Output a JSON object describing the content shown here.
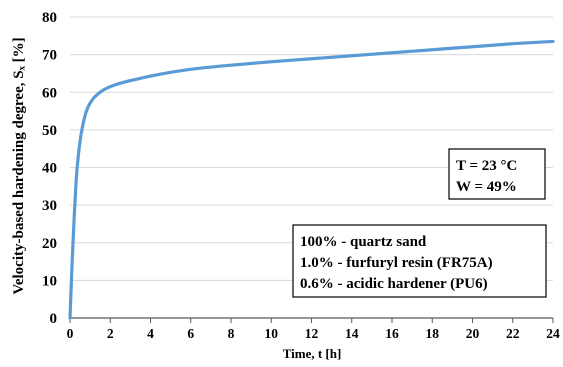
{
  "chart_data": {
    "type": "line",
    "xlabel": "Time, t [h]",
    "ylabel": "Velocity-based hardening degree, Sₓ [%]",
    "xlim": [
      0,
      24
    ],
    "ylim": [
      0,
      80
    ],
    "x_ticks": [
      "0",
      "2",
      "4",
      "6",
      "8",
      "10",
      "12",
      "14",
      "16",
      "18",
      "20",
      "22",
      "24"
    ],
    "y_ticks": [
      "0",
      "10",
      "20",
      "30",
      "40",
      "50",
      "60",
      "70",
      "80"
    ],
    "grid": "horizontal",
    "line_color": "#5b9bd5",
    "series": [
      {
        "x": [
          0,
          0.1,
          0.2,
          0.3,
          0.4,
          0.5,
          0.6,
          0.7,
          0.8,
          0.9,
          1.0,
          1.2,
          1.4,
          1.6,
          1.8,
          2.0,
          2.5,
          3,
          3.5,
          4,
          5,
          6,
          7,
          8,
          10,
          12,
          14,
          16,
          18,
          20,
          22,
          24
        ],
        "y": [
          0,
          14,
          26,
          36,
          42.5,
          47,
          50.3,
          52.8,
          54.7,
          56.1,
          57.1,
          58.6,
          59.6,
          60.4,
          61.0,
          61.5,
          62.4,
          63.1,
          63.7,
          64.3,
          65.3,
          66.1,
          66.7,
          67.2,
          68.1,
          68.9,
          69.7,
          70.5,
          71.3,
          72.1,
          72.9,
          73.5
        ]
      }
    ],
    "annotations": {
      "conditions": [
        "T = 23 °C",
        "W = 49%"
      ],
      "composition": [
        "100% - quartz sand",
        "1.0% - furfuryl resin (FR75A)",
        "0.6% - acidic hardener (PU6)"
      ]
    }
  }
}
